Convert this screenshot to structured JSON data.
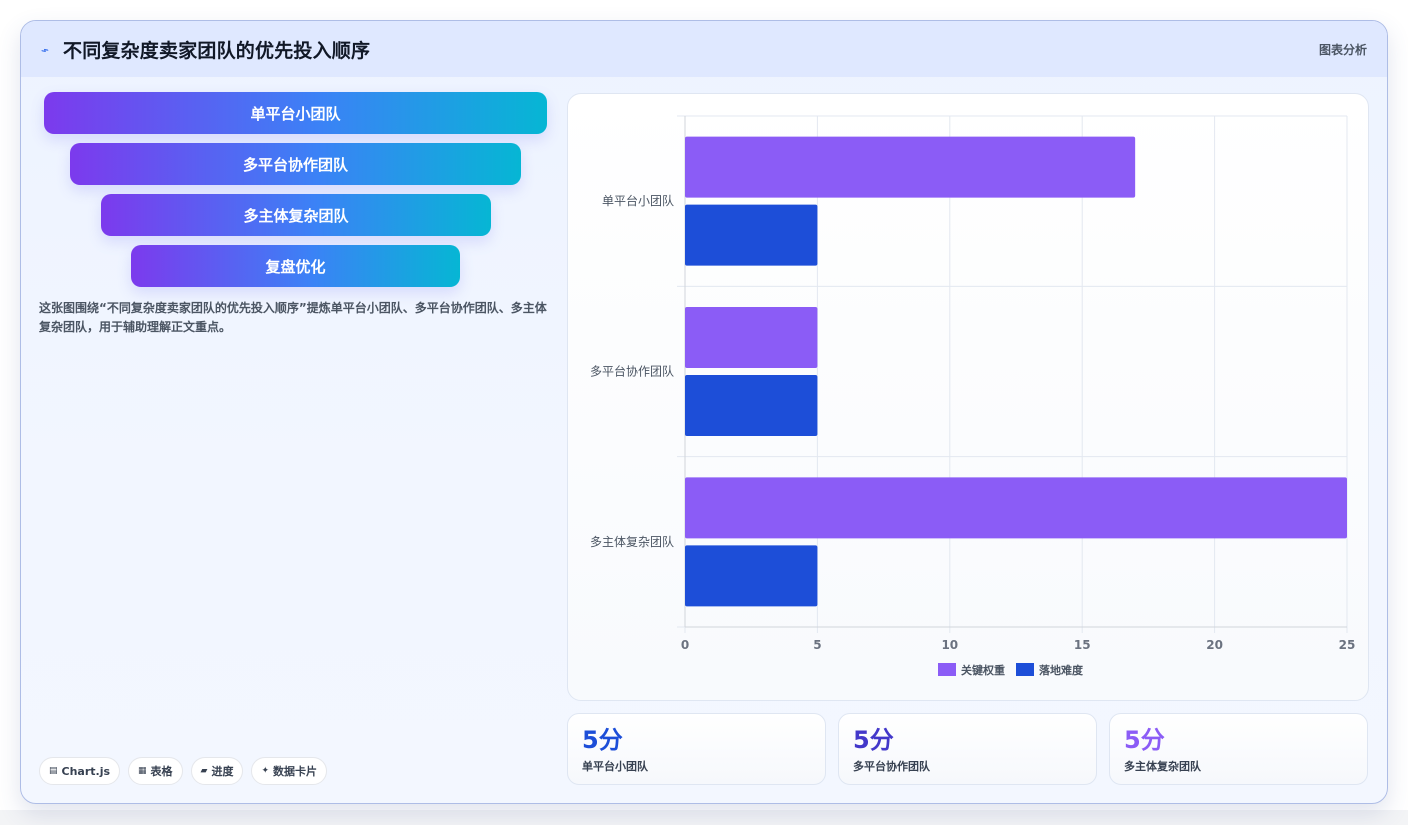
{
  "header": {
    "title": "不同复杂度卖家团队的优先投入顺序",
    "icon": "sparkline-icon",
    "right_label": "图表分析"
  },
  "funnel": {
    "steps": [
      "单平台小团队",
      "多平台协作团队",
      "多主体复杂团队",
      "复盘优化"
    ]
  },
  "description": "这张图围绕“不同复杂度卖家团队的优先投入顺序”提炼单平台小团队、多平台协作团队、多主体复杂团队，用于辅助理解正文重点。",
  "tags": [
    {
      "icon": "chart-icon",
      "label": "Chart.js"
    },
    {
      "icon": "table-icon",
      "label": "表格"
    },
    {
      "icon": "progress-icon",
      "label": "进度"
    },
    {
      "icon": "sparkle-icon",
      "label": "数据卡片"
    }
  ],
  "chart_data": {
    "type": "bar",
    "orientation": "horizontal",
    "categories": [
      "单平台小团队",
      "多平台协作团队",
      "多主体复杂团队"
    ],
    "series": [
      {
        "name": "关键权重",
        "values": [
          17,
          5,
          25
        ],
        "color": "#8b5cf6"
      },
      {
        "name": "落地难度",
        "values": [
          5,
          5,
          5
        ],
        "color": "#1d4ed8"
      }
    ],
    "xlim": [
      0,
      25
    ],
    "xticks": [
      0,
      5,
      10,
      15,
      20,
      25
    ],
    "grid": true,
    "legend": "bottom"
  },
  "stats": [
    {
      "value": "5分",
      "label": "单平台小团队",
      "color": "#1d4ed8"
    },
    {
      "value": "5分",
      "label": "多平台协作团队",
      "color": "#4338ca"
    },
    {
      "value": "5分",
      "label": "多主体复杂团队",
      "color": "#8b5cf6"
    }
  ]
}
